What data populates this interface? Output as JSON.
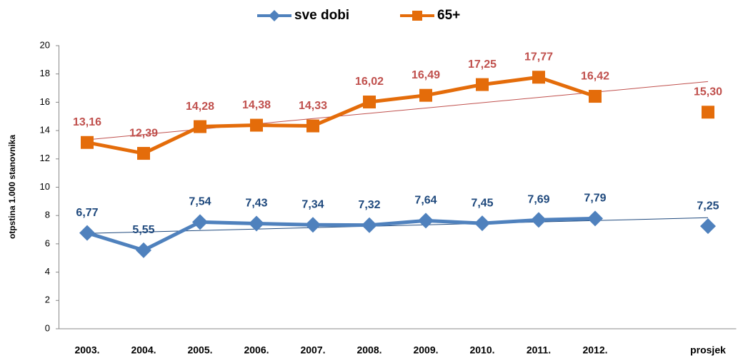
{
  "chart_data": {
    "type": "line",
    "y_label": "otpstina 1.000 stanovnika",
    "categories": [
      "2003.",
      "2004.",
      "2005.",
      "2006.",
      "2007.",
      "2008.",
      "2009.",
      "2010.",
      "2011.",
      "2012.",
      null,
      "prosjek"
    ],
    "series": [
      {
        "name": "sve dobi",
        "color": "#4f81bd",
        "label_color": "#1f497d",
        "marker": "diamond",
        "values": [
          6.77,
          5.55,
          7.54,
          7.43,
          7.34,
          7.32,
          7.64,
          7.45,
          7.69,
          7.79,
          null,
          7.25
        ],
        "value_labels": [
          "6,77",
          "5,55",
          "7,54",
          "7,43",
          "7,34",
          "7,32",
          "7,64",
          "7,45",
          "7,69",
          "7,79",
          null,
          "7,25"
        ]
      },
      {
        "name": "65+",
        "color": "#e46c0a",
        "label_color": "#c0504d",
        "marker": "square",
        "values": [
          13.16,
          12.39,
          14.28,
          14.38,
          14.33,
          16.02,
          16.49,
          17.25,
          17.77,
          16.42,
          null,
          15.3
        ],
        "value_labels": [
          "13,16",
          "12,39",
          "14,28",
          "14,38",
          "14,33",
          "16,02",
          "16,49",
          "17,25",
          "17,77",
          "16,42",
          null,
          "15,30"
        ]
      }
    ],
    "ylim": [
      0,
      20
    ],
    "yticks": [
      0,
      2,
      4,
      6,
      8,
      10,
      12,
      14,
      16,
      18,
      20
    ],
    "grid": false,
    "trendline": true,
    "legend": "top"
  }
}
